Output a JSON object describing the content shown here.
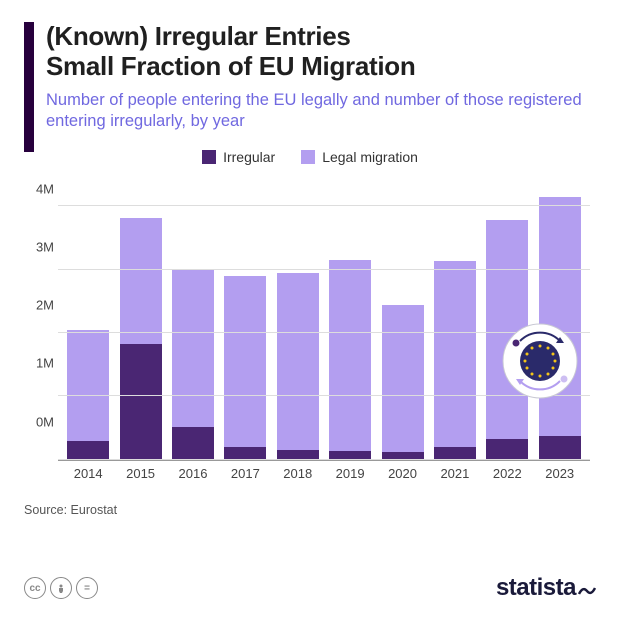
{
  "title_line1": "(Known) Irregular Entries",
  "title_line2": "Small Fraction of EU Migration",
  "subtitle": "Number of people entering the EU legally and number of those registered entering irregularly, by year",
  "legend": {
    "irregular": "Irregular",
    "legal": "Legal migration"
  },
  "colors": {
    "irregular": "#4a2673",
    "legal": "#b39ef0",
    "header_bar": "#27003d",
    "subtitle": "#7068e0",
    "grid": "#dddddd"
  },
  "chart": {
    "type": "stacked-bar",
    "ymax": 4500000,
    "yticks": [
      {
        "v": 0,
        "label": "0M"
      },
      {
        "v": 1000000,
        "label": "1M"
      },
      {
        "v": 2000000,
        "label": "2M"
      },
      {
        "v": 3000000,
        "label": "3M"
      },
      {
        "v": 4000000,
        "label": "4M"
      }
    ],
    "years": [
      "2014",
      "2015",
      "2016",
      "2017",
      "2018",
      "2019",
      "2020",
      "2021",
      "2022",
      "2023"
    ],
    "irregular": [
      290000,
      1820000,
      510000,
      200000,
      150000,
      140000,
      120000,
      200000,
      330000,
      380000
    ],
    "legal": [
      1750000,
      2000000,
      2490000,
      2700000,
      2800000,
      3020000,
      2320000,
      2940000,
      3460000,
      3760000
    ]
  },
  "source": "Source: Eurostat",
  "logo_text": "statista",
  "cc": [
    "cc",
    "by",
    "nd"
  ]
}
